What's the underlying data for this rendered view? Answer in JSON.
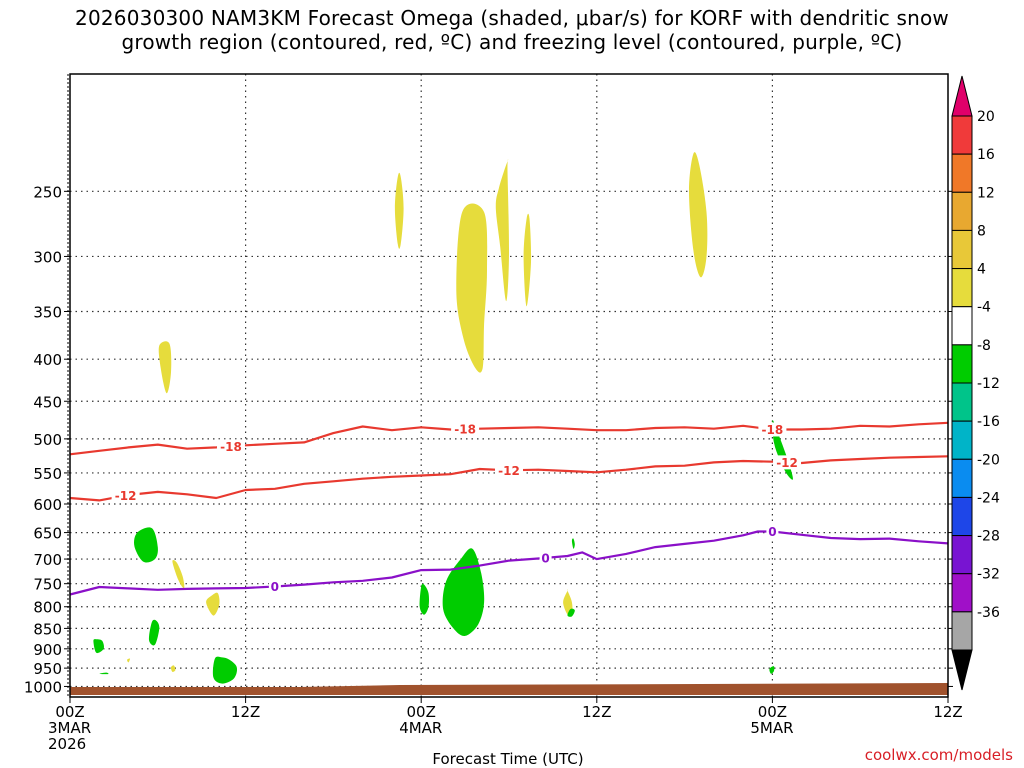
{
  "title": {
    "line1": "2026030300 NAM3KM Forecast Omega (shaded, μbar/s) for KORF with dendritic snow",
    "line2": "growth region (contoured, red, ºC) and freezing level (contoured, purple, ºC)"
  },
  "credit": "coolwx.com/models",
  "chart_data": {
    "type": "heatmap",
    "xlabel": "Forecast Time (UTC)",
    "x_ticks": [
      {
        "hour": 0,
        "lines": [
          "00Z",
          "3MAR",
          "2026"
        ]
      },
      {
        "hour": 12,
        "lines": [
          "12Z"
        ]
      },
      {
        "hour": 24,
        "lines": [
          "00Z",
          "4MAR"
        ]
      },
      {
        "hour": 36,
        "lines": [
          "12Z"
        ]
      },
      {
        "hour": 48,
        "lines": [
          "00Z",
          "5MAR"
        ]
      },
      {
        "hour": 60,
        "lines": [
          "12Z"
        ]
      }
    ],
    "xlim": [
      0,
      60
    ],
    "y_ticks": [
      250,
      300,
      350,
      400,
      450,
      500,
      550,
      600,
      650,
      700,
      750,
      800,
      850,
      900,
      950,
      1000
    ],
    "ylim": [
      1030,
      180
    ],
    "y_scale": "log-pressure",
    "grid": true,
    "colorbar": {
      "labels": [
        "20",
        "16",
        "12",
        "8",
        "4",
        "-4",
        "-8",
        "-12",
        "-16",
        "-20",
        "-24",
        "-28",
        "-32",
        "-36"
      ],
      "colors": [
        "#e0006a",
        "#f03a3a",
        "#f07828",
        "#e8a830",
        "#e8c838",
        "#e6dc3c",
        "#ffffff",
        "#00cc00",
        "#00c48a",
        "#00b4c8",
        "#0a8cf0",
        "#1e46e8",
        "#7814d2",
        "#a010c8",
        "#a6a6a6",
        "#000000"
      ]
    },
    "contours": [
      {
        "name": "-18",
        "color": "#e8392f",
        "label_hours": [
          11,
          27,
          48
        ],
        "points": [
          [
            0,
            522
          ],
          [
            2,
            517
          ],
          [
            4,
            512
          ],
          [
            6,
            508
          ],
          [
            8,
            514
          ],
          [
            10,
            512
          ],
          [
            12,
            509
          ],
          [
            14,
            507
          ],
          [
            16,
            505
          ],
          [
            18,
            492
          ],
          [
            20,
            483
          ],
          [
            22,
            488
          ],
          [
            24,
            484
          ],
          [
            26,
            487
          ],
          [
            28,
            486
          ],
          [
            30,
            485
          ],
          [
            32,
            484
          ],
          [
            34,
            486
          ],
          [
            36,
            488
          ],
          [
            38,
            488
          ],
          [
            40,
            485
          ],
          [
            42,
            484
          ],
          [
            44,
            486
          ],
          [
            46,
            482
          ],
          [
            48,
            487
          ],
          [
            50,
            487
          ],
          [
            52,
            486
          ],
          [
            54,
            482
          ],
          [
            56,
            483
          ],
          [
            58,
            480
          ],
          [
            60,
            478
          ]
        ]
      },
      {
        "name": "-12",
        "color": "#e8392f",
        "label_hours": [
          3.8,
          30,
          49
        ],
        "points": [
          [
            0,
            590
          ],
          [
            2,
            594
          ],
          [
            4,
            585
          ],
          [
            6,
            580
          ],
          [
            8,
            584
          ],
          [
            10,
            590
          ],
          [
            12,
            577
          ],
          [
            14,
            575
          ],
          [
            16,
            567
          ],
          [
            18,
            563
          ],
          [
            20,
            559
          ],
          [
            22,
            556
          ],
          [
            24,
            554
          ],
          [
            26,
            552
          ],
          [
            28,
            544
          ],
          [
            30,
            546
          ],
          [
            32,
            545
          ],
          [
            34,
            547
          ],
          [
            36,
            549
          ],
          [
            38,
            545
          ],
          [
            40,
            540
          ],
          [
            42,
            539
          ],
          [
            44,
            534
          ],
          [
            46,
            532
          ],
          [
            48,
            533
          ],
          [
            50,
            535
          ],
          [
            52,
            531
          ],
          [
            54,
            529
          ],
          [
            56,
            527
          ],
          [
            58,
            526
          ],
          [
            60,
            525
          ]
        ]
      },
      {
        "name": "0",
        "color": "#8a10c8",
        "label_hours": [
          14,
          32.5,
          48
        ],
        "points": [
          [
            0,
            773
          ],
          [
            2,
            757
          ],
          [
            4,
            760
          ],
          [
            6,
            763
          ],
          [
            8,
            761
          ],
          [
            10,
            760
          ],
          [
            12,
            759
          ],
          [
            14,
            756
          ],
          [
            16,
            752
          ],
          [
            18,
            747
          ],
          [
            20,
            744
          ],
          [
            22,
            737
          ],
          [
            24,
            722
          ],
          [
            26,
            721
          ],
          [
            28,
            713
          ],
          [
            30,
            703
          ],
          [
            32,
            699
          ],
          [
            34,
            694
          ],
          [
            35,
            687
          ],
          [
            36,
            700
          ],
          [
            38,
            690
          ],
          [
            40,
            677
          ],
          [
            42,
            671
          ],
          [
            44,
            665
          ],
          [
            46,
            655
          ],
          [
            47,
            648
          ],
          [
            48,
            648
          ],
          [
            50,
            654
          ],
          [
            52,
            660
          ],
          [
            54,
            662
          ],
          [
            56,
            661
          ],
          [
            58,
            666
          ],
          [
            60,
            670
          ]
        ]
      }
    ],
    "omega_regions": [
      {
        "color": "#e6dc3c",
        "hours": [
          22.4,
          22.2,
          22.4,
          22.6,
          22.8,
          22.6
        ],
        "p": [
          240,
          262,
          290,
          290,
          262,
          240
        ]
      },
      {
        "color": "#e6dc3c",
        "hours": [
          26.8,
          26.4,
          26.9,
          27.7,
          28.2,
          28.3,
          28.5,
          28.3
        ],
        "p": [
          265,
          330,
          378,
          410,
          410,
          362,
          312,
          265
        ]
      },
      {
        "color": "#e6dc3c",
        "hours": [
          29.3,
          29.1,
          29.4,
          29.8,
          30.0,
          29.9,
          29.9
        ],
        "p": [
          248,
          262,
          292,
          340,
          298,
          236,
          230
        ]
      },
      {
        "color": "#e6dc3c",
        "hours": [
          31.2,
          31.0,
          31.2,
          31.5,
          31.4
        ],
        "p": [
          270,
          300,
          345,
          305,
          270
        ]
      },
      {
        "color": "#e6dc3c",
        "hours": [
          42.6,
          42.3,
          42.6,
          43.1,
          43.5,
          43.5,
          43.0
        ],
        "p": [
          225,
          250,
          295,
          318,
          300,
          265,
          232
        ]
      },
      {
        "color": "#e6dc3c",
        "hours": [
          6.1,
          6.2,
          6.6,
          6.9,
          6.8
        ],
        "p": [
          385,
          410,
          440,
          415,
          383
        ]
      },
      {
        "color": "#e6dc3c",
        "hours": [
          7.0,
          7.4,
          7.8,
          7.7,
          7.3
        ],
        "p": [
          705,
          742,
          760,
          735,
          707
        ]
      },
      {
        "color": "#e6dc3c",
        "hours": [
          9.3,
          9.8,
          10.2,
          10.1,
          9.7
        ],
        "p": [
          790,
          820,
          795,
          770,
          775
        ]
      },
      {
        "color": "#e6dc3c",
        "hours": [
          34.0,
          33.7,
          34.0,
          34.3,
          34.3,
          34.0
        ],
        "p": [
          765,
          790,
          818,
          818,
          790,
          765
        ]
      },
      {
        "color": "#e6dc3c",
        "hours": [
          6.9,
          7.0,
          7.2,
          7.1
        ],
        "p": [
          948,
          960,
          955,
          943
        ]
      },
      {
        "color": "#e6dc3c",
        "hours": [
          3.9,
          4.0,
          4.1
        ],
        "p": [
          928,
          935,
          925
        ]
      },
      {
        "color": "#00cc00",
        "hours": [
          4.6,
          4.4,
          5.0,
          5.8,
          6.0,
          5.6
        ],
        "p": [
          650,
          675,
          705,
          700,
          677,
          642
        ]
      },
      {
        "color": "#00cc00",
        "hours": [
          5.6,
          5.4,
          5.8,
          6.1,
          5.9
        ],
        "p": [
          835,
          878,
          890,
          850,
          832
        ]
      },
      {
        "color": "#00cc00",
        "hours": [
          1.6,
          1.8,
          2.3,
          2.2,
          1.8
        ],
        "p": [
          880,
          910,
          900,
          880,
          876
        ]
      },
      {
        "color": "#00cc00",
        "hours": [
          9.9,
          9.8,
          10.4,
          11.2,
          11.4,
          10.9,
          10.4
        ],
        "p": [
          925,
          975,
          992,
          978,
          948,
          928,
          922
        ]
      },
      {
        "color": "#00cc00",
        "hours": [
          24.0,
          23.9,
          24.2,
          24.5,
          24.5,
          24.2
        ],
        "p": [
          756,
          800,
          818,
          800,
          770,
          752
        ]
      },
      {
        "color": "#00cc00",
        "hours": [
          25.7,
          25.5,
          26.2,
          27.0,
          27.9,
          28.3,
          28.1,
          27.5,
          26.7
        ],
        "p": [
          745,
          805,
          850,
          868,
          840,
          790,
          728,
          680,
          700
        ]
      },
      {
        "color": "#00cc00",
        "hours": [
          34.2,
          34.0,
          34.3,
          34.5
        ],
        "p": [
          805,
          820,
          822,
          808
        ]
      },
      {
        "color": "#00cc00",
        "hours": [
          34.3,
          34.4,
          34.5,
          34.4
        ],
        "p": [
          665,
          680,
          672,
          661
        ]
      },
      {
        "color": "#00cc00",
        "hours": [
          48.0,
          48.1,
          48.5,
          49.0,
          49.4,
          49.2,
          48.8,
          48.4,
          48.1
        ],
        "p": [
          477,
          505,
          530,
          552,
          560,
          540,
          515,
          493,
          477
        ]
      },
      {
        "color": "#00cc00",
        "hours": [
          47.8,
          47.9,
          48.1,
          48.1
        ],
        "p": [
          952,
          965,
          958,
          945
        ]
      },
      {
        "color": "#00cc00",
        "hours": [
          2.0,
          2.6,
          2.5
        ],
        "p": [
          965,
          966,
          962
        ]
      }
    ],
    "terrain_color": "#a0522d"
  }
}
